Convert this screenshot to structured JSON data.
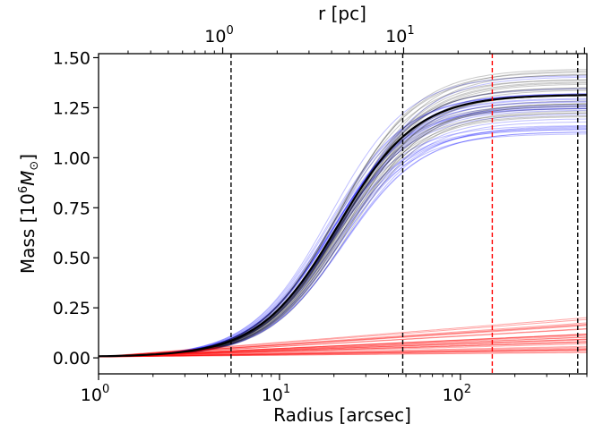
{
  "chart_data": {
    "type": "line",
    "xscale": "log",
    "xlabel": "Radius [arcsec]",
    "ylabel_prefix": "Mass [10",
    "ylabel_exp": "6",
    "ylabel_unit": "M",
    "ylabel_sub": "⊙",
    "ylabel_suffix": "]",
    "top_xlabel": "r [pc]",
    "xlim": [
      1,
      500
    ],
    "ylim": [
      -0.08,
      1.52
    ],
    "yticks": [
      {
        "value": 0.0,
        "label": "0.00"
      },
      {
        "value": 0.25,
        "label": "0.25"
      },
      {
        "value": 0.5,
        "label": "0.50"
      },
      {
        "value": 0.75,
        "label": "0.75"
      },
      {
        "value": 1.0,
        "label": "1.00"
      },
      {
        "value": 1.25,
        "label": "1.25"
      },
      {
        "value": 1.5,
        "label": "1.50"
      }
    ],
    "xticks": [
      {
        "value": 1,
        "base": "10",
        "exp": "0"
      },
      {
        "value": 10,
        "base": "10",
        "exp": "1"
      },
      {
        "value": 100,
        "base": "10",
        "exp": "2"
      }
    ],
    "top_ticks": [
      {
        "value": 2.06,
        "base": "10",
        "exp": "0"
      },
      {
        "value": 20.6,
        "base": "10",
        "exp": "1"
      }
    ],
    "vlines": [
      {
        "x": 5.4,
        "color": "#000000"
      },
      {
        "x": 48,
        "color": "#000000"
      },
      {
        "x": 150,
        "color": "#ff0000"
      },
      {
        "x": 445,
        "color": "#000000"
      }
    ],
    "series": [
      {
        "color": "#000000",
        "asymptote_range": [
          1.2,
          1.45
        ],
        "scale_range": [
          20,
          24
        ],
        "count": 30
      },
      {
        "color": "#0000ff",
        "asymptote_range": [
          1.1,
          1.42
        ],
        "scale_range": [
          18,
          23
        ],
        "count": 30
      },
      {
        "color": "#ff0000",
        "slope_range": [
          0.02,
          0.19
        ],
        "count": 30
      }
    ],
    "grid": false
  }
}
